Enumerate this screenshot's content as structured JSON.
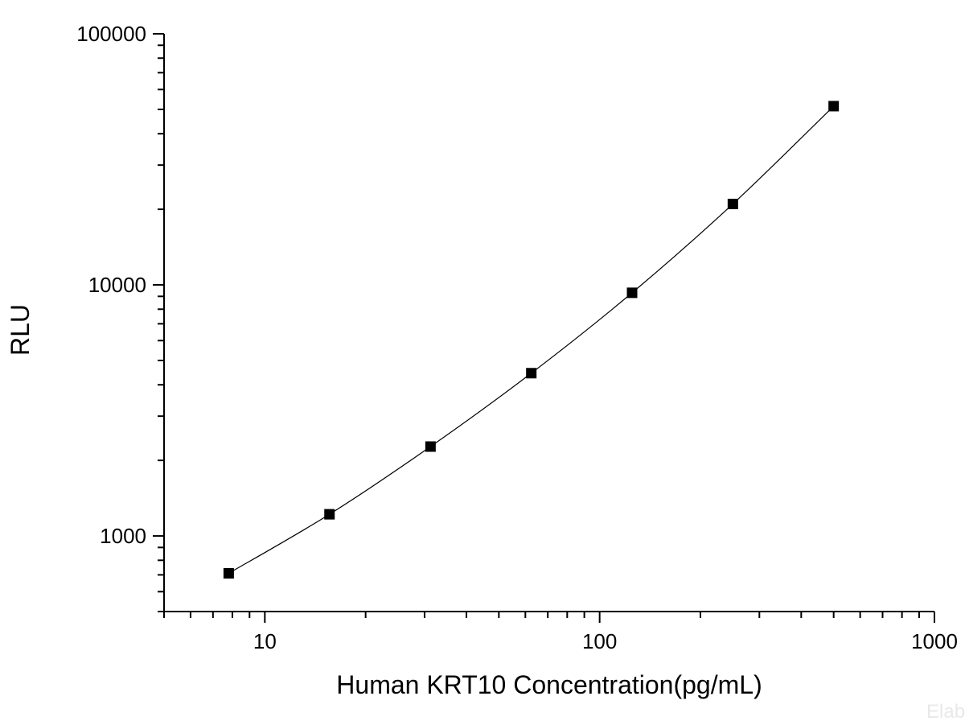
{
  "chart_data": {
    "type": "line",
    "xlabel": "Human KRT10 Concentration(pg/mL)",
    "ylabel": "RLU",
    "x_scale": "log",
    "y_scale": "log",
    "xlim": [
      5,
      1000
    ],
    "ylim": [
      500,
      100000
    ],
    "x_ticks": [
      {
        "value": 10,
        "label": "10"
      },
      {
        "value": 100,
        "label": "100"
      },
      {
        "value": 1000,
        "label": "1000"
      }
    ],
    "y_ticks": [
      {
        "value": 1000,
        "label": "1000"
      },
      {
        "value": 10000,
        "label": "10000"
      },
      {
        "value": 100000,
        "label": "100000"
      }
    ],
    "grid": false,
    "legend": "none",
    "marker": "square",
    "series": [
      {
        "x": [
          7.8,
          15.6,
          31.25,
          62.5,
          125,
          250,
          500
        ],
        "y": [
          710,
          1220,
          2270,
          4450,
          9300,
          21000,
          51500
        ]
      }
    ],
    "colors": {
      "line": "#000000",
      "marker": "#000000",
      "axis": "#000000"
    },
    "watermark": "Elab"
  }
}
